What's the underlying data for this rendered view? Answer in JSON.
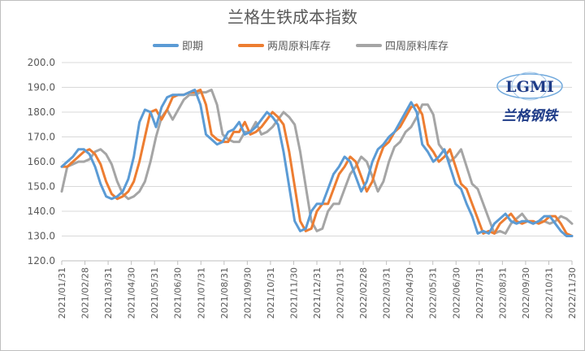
{
  "chart_data": {
    "type": "line",
    "title": "兰格生铁成本指数",
    "ylim": [
      120,
      200
    ],
    "yticks": [
      "200.0",
      "190.0",
      "180.0",
      "170.0",
      "160.0",
      "150.0",
      "140.0",
      "130.0",
      "120.0"
    ],
    "x_ticks": [
      "2021/01/31",
      "2021/02/28",
      "2021/03/31",
      "2021/04/30",
      "2021/05/31",
      "2021/06/30",
      "2021/07/31",
      "2021/08/31",
      "2021/09/30",
      "2021/10/31",
      "2021/11/30",
      "2021/12/31",
      "2022/01/31",
      "2022/02/28",
      "2022/03/31",
      "2022/04/30",
      "2022/05/31",
      "2022/06/30",
      "2022/07/31",
      "2022/08/31",
      "2022/09/30",
      "2022/10/31",
      "2022/11/30"
    ],
    "grid": true,
    "legend_position": "top",
    "series": [
      {
        "name": "即期",
        "color": "#5b9bd5",
        "values": [
          158,
          160,
          162,
          165,
          165,
          163,
          158,
          151,
          146,
          145,
          146,
          148,
          153,
          162,
          176,
          181,
          180,
          174,
          182,
          186,
          187,
          187,
          187,
          188,
          189,
          183,
          171,
          169,
          167,
          168,
          172,
          173,
          176,
          171,
          172,
          174,
          177,
          180,
          178,
          175,
          164,
          150,
          136,
          132,
          133,
          140,
          143,
          143,
          149,
          155,
          158,
          162,
          160,
          154,
          148,
          152,
          160,
          165,
          167,
          170,
          172,
          176,
          180,
          184,
          180,
          167,
          164,
          160,
          162,
          165,
          158,
          151,
          149,
          143,
          138,
          131,
          132,
          131,
          135,
          137,
          139,
          136,
          135,
          136,
          136,
          135,
          136,
          138,
          138,
          135,
          132,
          130,
          130
        ]
      },
      {
        "name": "两周原料库存",
        "color": "#ed7d31",
        "values": [
          158,
          158,
          160,
          162,
          164,
          165,
          163,
          159,
          152,
          147,
          145,
          146,
          148,
          152,
          160,
          170,
          180,
          181,
          177,
          181,
          186,
          187,
          187,
          188,
          188,
          189,
          183,
          171,
          169,
          168,
          168,
          172,
          172,
          176,
          171,
          172,
          174,
          177,
          180,
          178,
          175,
          164,
          150,
          136,
          132,
          133,
          140,
          143,
          143,
          149,
          155,
          158,
          162,
          160,
          154,
          148,
          152,
          160,
          166,
          168,
          172,
          174,
          178,
          182,
          183,
          179,
          167,
          164,
          160,
          162,
          165,
          158,
          151,
          149,
          143,
          137,
          131,
          132,
          131,
          135,
          137,
          139,
          136,
          135,
          136,
          136,
          135,
          136,
          138,
          138,
          135,
          131,
          130
        ]
      },
      {
        "name": "四周原料库存",
        "color": "#a5a5a5",
        "values": [
          148,
          158,
          159,
          160,
          160,
          161,
          164,
          165,
          163,
          159,
          152,
          147,
          145,
          146,
          148,
          152,
          160,
          170,
          178,
          181,
          177,
          181,
          185,
          187,
          187,
          188,
          188,
          189,
          183,
          171,
          169,
          168,
          168,
          172,
          172,
          176,
          171,
          172,
          174,
          177,
          180,
          178,
          175,
          164,
          150,
          136,
          132,
          133,
          140,
          143,
          143,
          149,
          155,
          158,
          162,
          160,
          154,
          148,
          152,
          160,
          166,
          168,
          172,
          174,
          178,
          183,
          183,
          179,
          167,
          164,
          160,
          162,
          165,
          158,
          151,
          149,
          143,
          137,
          131,
          132,
          131,
          135,
          137,
          139,
          136,
          135,
          136,
          136,
          135,
          136,
          138,
          137,
          135
        ]
      }
    ]
  },
  "logo": {
    "text": "LGMI",
    "subtitle": "兰格钢铁"
  }
}
